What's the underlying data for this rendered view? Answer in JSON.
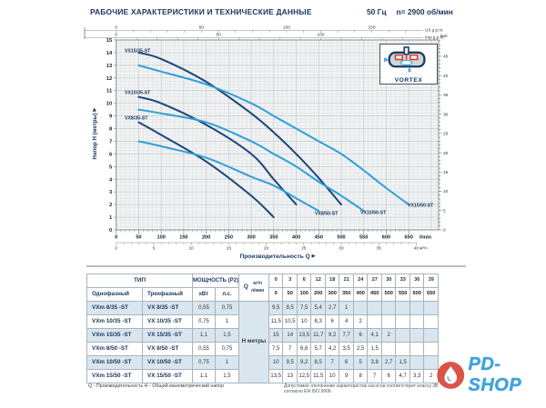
{
  "header": {
    "title": "РАБОЧИЕ ХАРАКТЕРИСТИКИ И ТЕХНИЧЕСКИЕ ДАННЫЕ",
    "frequency": "50 Гц",
    "speed": "n= 2900 об/мин"
  },
  "chart": {
    "y_axis_label": "Напор H (метры)",
    "x_axis_label": "Производительность Q",
    "axes": {
      "us_gpm": {
        "unit": "US g.p.m.",
        "labeled_ticks": [
          0,
          50,
          100,
          150
        ]
      },
      "imp_gpm": {
        "unit": "Imp g.p.m.",
        "labeled_ticks": [
          0,
          50,
          100
        ]
      },
      "feet": {
        "unit": "feet",
        "labeled_ticks": [
          5,
          10,
          15,
          20,
          25,
          30,
          35,
          40,
          45
        ],
        "zero_label": "0"
      },
      "meters": {
        "ticks": [
          0,
          1,
          2,
          3,
          4,
          5,
          6,
          7,
          8,
          9,
          10,
          11,
          12,
          13,
          14,
          15
        ]
      },
      "lmin": {
        "unit": "l/min",
        "labeled_ticks": [
          0,
          50,
          100,
          150,
          200,
          250,
          300,
          350,
          400,
          450,
          500,
          550,
          600,
          650
        ]
      },
      "m3h": {
        "unit": "м³/ч",
        "labeled_ticks": [
          0,
          5,
          10,
          15,
          20,
          25,
          30,
          35,
          40
        ]
      }
    }
  },
  "chart_data": {
    "type": "line",
    "title": "Pump performance curves VX 8/35...VX 15/50",
    "xlabel": "Производительность Q",
    "ylabel": "Напор H (метры)",
    "x_unit": "l/min",
    "xlim": [
      0,
      717
    ],
    "ylim": [
      0,
      15
    ],
    "grid": "on",
    "x_lmin": [
      0,
      50,
      100,
      200,
      300,
      350,
      400,
      450,
      500,
      550,
      600,
      650
    ],
    "x_m3h": [
      0,
      3,
      6,
      12,
      18,
      21,
      24,
      27,
      30,
      33,
      36,
      39
    ],
    "series": [
      {
        "name": "VX 8/35 -ST",
        "label": "VX8/35-ST",
        "color": "#1d4577",
        "values": [
          9.5,
          8.5,
          7.5,
          5.4,
          2.7,
          1,
          null,
          null,
          null,
          null,
          null,
          null
        ]
      },
      {
        "name": "VX 10/35 -ST",
        "label": "VX10/35-ST",
        "color": "#1d4577",
        "values": [
          11.5,
          10.5,
          10,
          8.3,
          6,
          4,
          2,
          null,
          null,
          null,
          null,
          null
        ]
      },
      {
        "name": "VX 15/35 -ST",
        "label": "VX15/35-ST",
        "color": "#1d4577",
        "values": [
          15,
          14,
          13.5,
          11.7,
          9.2,
          7.7,
          6,
          4.1,
          2,
          null,
          null,
          null
        ]
      },
      {
        "name": "VX 8/50 -ST",
        "label": "VX8/50-ST",
        "color": "#2f9fd8",
        "values": [
          7.5,
          7,
          6.6,
          5.7,
          4.2,
          3.5,
          2.5,
          1.5,
          null,
          null,
          null,
          null
        ]
      },
      {
        "name": "VX 10/50 -ST",
        "label": "VX10/50-ST",
        "color": "#2f9fd8",
        "values": [
          10,
          9.5,
          9.2,
          8.5,
          7,
          6,
          5,
          3.8,
          2.7,
          1.5,
          null,
          null
        ]
      },
      {
        "name": "VX 15/50 -ST",
        "label": "VX15/50-ST",
        "color": "#2f9fd8",
        "values": [
          13.5,
          13,
          12.5,
          11.5,
          10,
          9,
          8,
          7,
          6,
          4.7,
          3.3,
          2
        ]
      }
    ]
  },
  "inset": {
    "label": "VORTEX"
  },
  "table": {
    "group_type": "ТИП",
    "group_power": "МОЩНОСТЬ (P2)",
    "col_single": "Однофазный",
    "col_three": "Трехфазный",
    "col_kw": "кВт",
    "col_hp": "л.с.",
    "q_letter": "Q",
    "q_unit_top": "м³/ч",
    "q_unit_bottom": "л/мин",
    "h_label": "H метры",
    "flow_m3h": [
      "0",
      "3",
      "6",
      "12",
      "18",
      "21",
      "24",
      "27",
      "30",
      "33",
      "36",
      "39"
    ],
    "flow_lmin": [
      "0",
      "50",
      "100",
      "200",
      "300",
      "350",
      "400",
      "450",
      "500",
      "550",
      "600",
      "650"
    ],
    "rows": [
      {
        "single": "VXm 8/35 -ST",
        "three": "VX 8/35 -ST",
        "kw": "0,55",
        "hp": "0,75",
        "head": [
          "9,5",
          "8,5",
          "7,5",
          "5,4",
          "2,7",
          "1",
          "",
          "",
          "",
          "",
          "",
          ""
        ]
      },
      {
        "single": "VXm 10/35 -ST",
        "three": "VX 10/35 -ST",
        "kw": "0,75",
        "hp": "1",
        "head": [
          "11,5",
          "10,5",
          "10",
          "8,3",
          "6",
          "4",
          "2",
          "",
          "",
          "",
          "",
          ""
        ]
      },
      {
        "single": "VXm 15/35 -ST",
        "three": "VX 15/35 -ST",
        "kw": "1,1",
        "hp": "1,5",
        "head": [
          "15",
          "14",
          "13,5",
          "11,7",
          "9,2",
          "7,7",
          "6",
          "4,1",
          "2",
          "",
          "",
          ""
        ]
      },
      {
        "single": "VXm 8/50 -ST",
        "three": "VX 8/50 -ST",
        "kw": "0,55",
        "hp": "0,75",
        "head": [
          "7,5",
          "7",
          "6,6",
          "5,7",
          "4,2",
          "3,5",
          "2,5",
          "1,5",
          "",
          "",
          "",
          ""
        ]
      },
      {
        "single": "VXm 10/50 -ST",
        "three": "VX 10/50 -ST",
        "kw": "0,75",
        "hp": "1",
        "head": [
          "10",
          "9,5",
          "9,2",
          "8,5",
          "7",
          "6",
          "5",
          "3,8",
          "2,7",
          "1,5",
          "",
          ""
        ]
      },
      {
        "single": "VXm 15/50 -ST",
        "three": "VX 15/50 -ST",
        "kw": "1,1",
        "hp": "1,5",
        "head": [
          "13,5",
          "13",
          "12,5",
          "11,5",
          "10",
          "9",
          "8",
          "7",
          "6",
          "4,7",
          "3,3",
          "2"
        ]
      }
    ]
  },
  "footnotes": {
    "left": "Q - Производительность   H - Общий манометрический напор",
    "right": "Допустимое отклонение характеристик насосов соответствует классу 3В согласно EN ISO 9906"
  },
  "watermark": {
    "text": "PD-SHOP"
  },
  "colors": {
    "accent_navy": "#17365d",
    "curve_dark": "#1d4577",
    "curve_light": "#2f9fd8",
    "row_shade": "#d9e6ef",
    "watermark_blue": "#3da4e0",
    "watermark_red": "#d8402f"
  }
}
